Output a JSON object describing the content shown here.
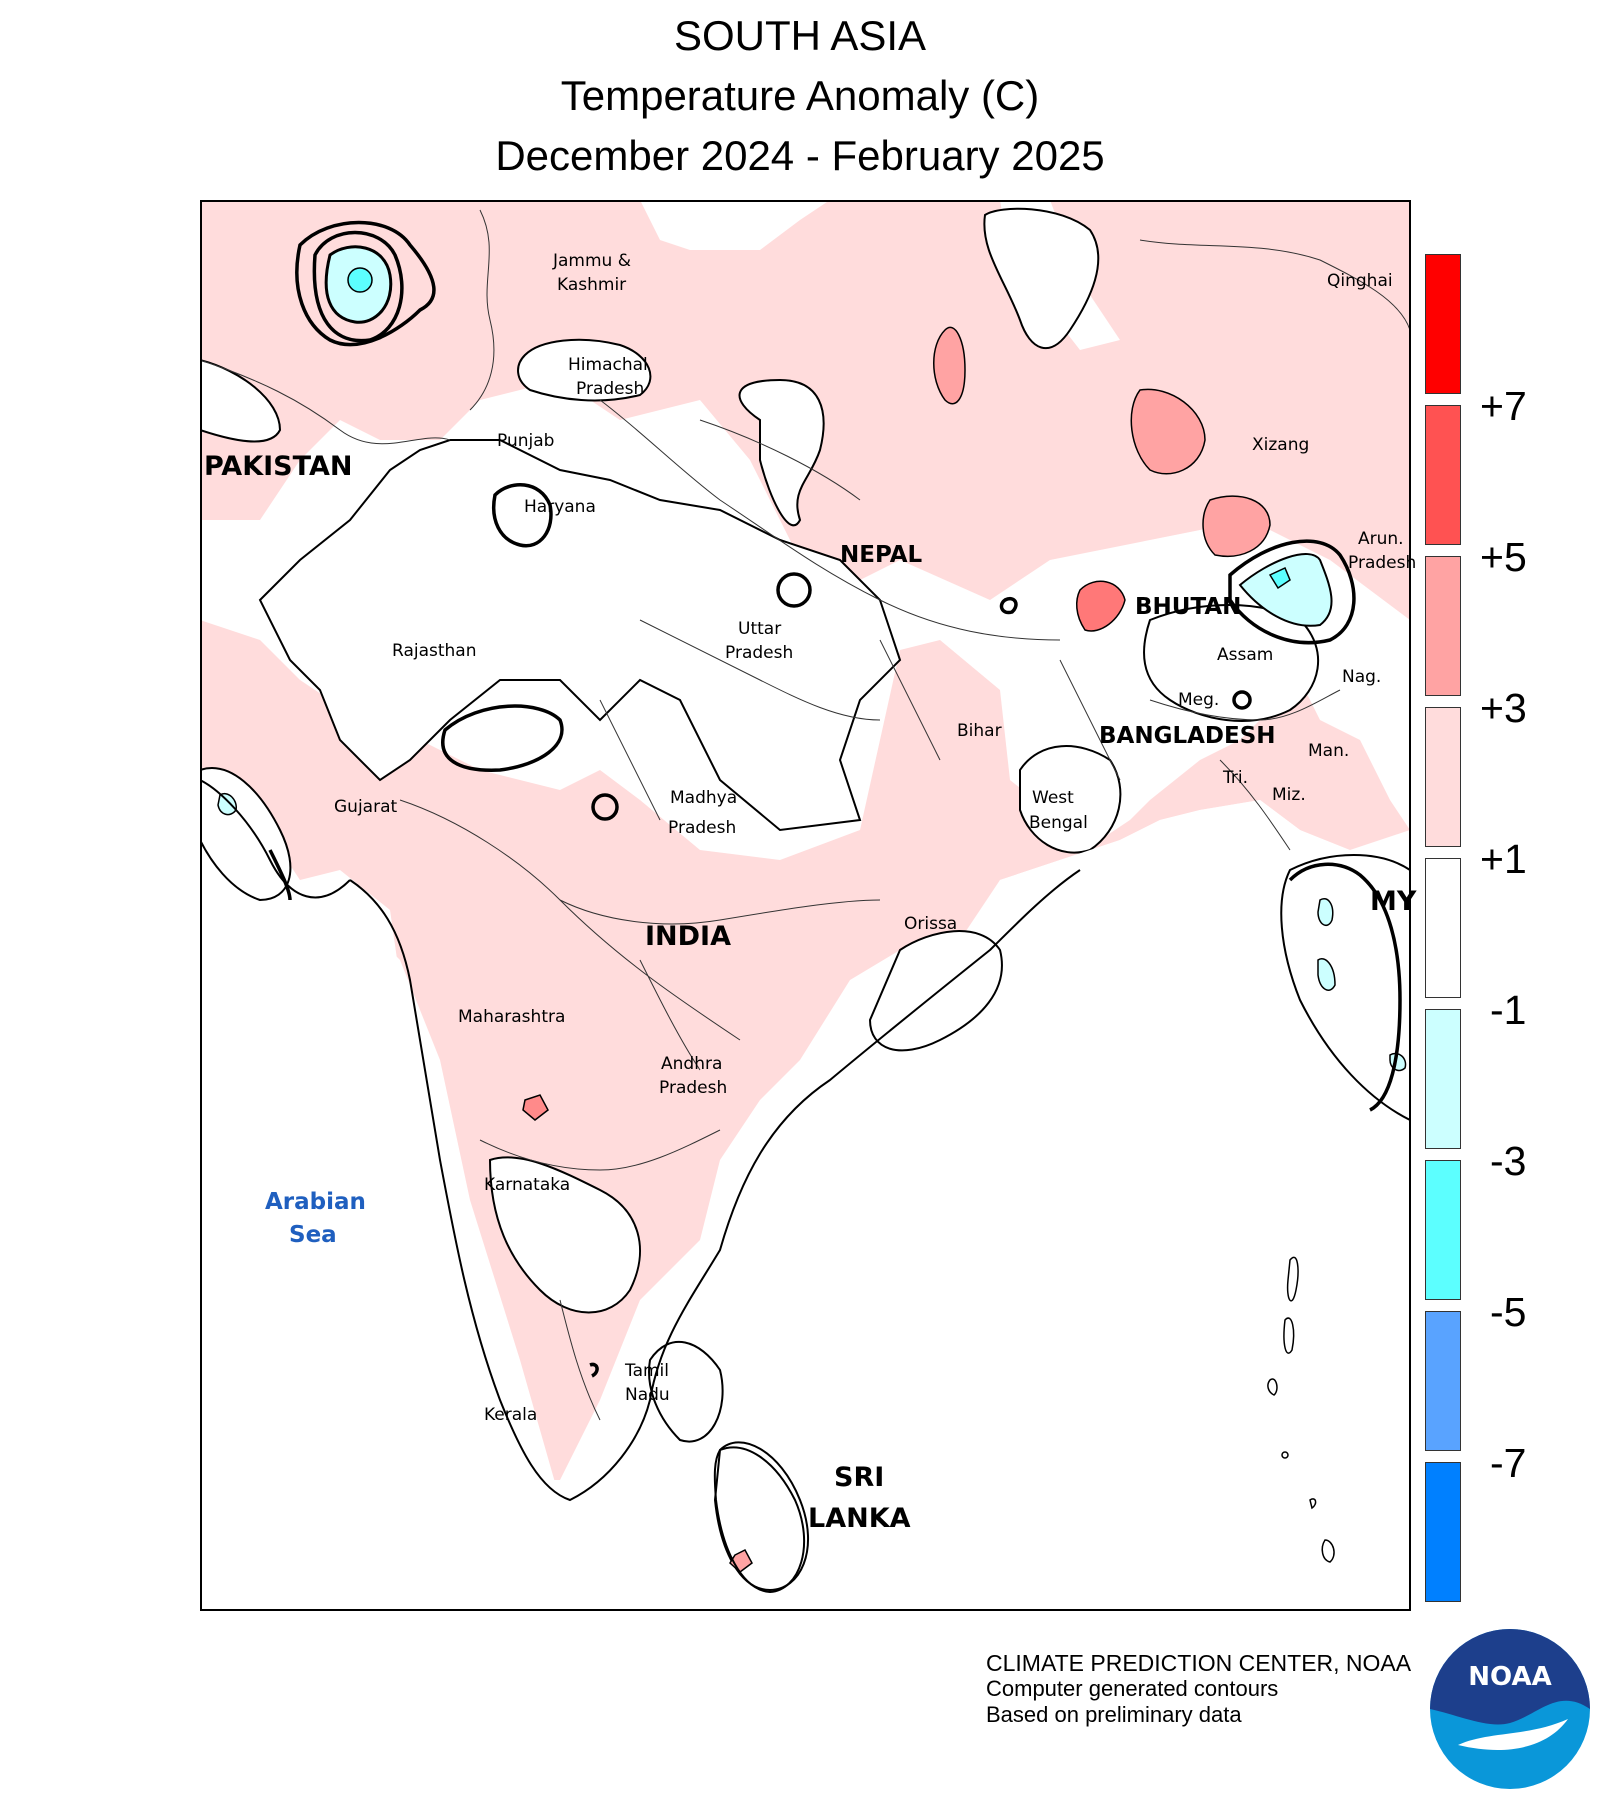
{
  "title": {
    "line1": "SOUTH ASIA",
    "line2": "Temperature Anomaly (C)",
    "line3": "December 2024 - February 2025"
  },
  "legend": {
    "colors": [
      "#ff0000",
      "#ff5252",
      "#ffa3a3",
      "#ffdcdc",
      "#ffffff",
      "#ccffff",
      "#5cffff",
      "#59a3ff",
      "#0080ff"
    ],
    "ticks": [
      "+7",
      "+5",
      "+3",
      "+1",
      "-1",
      "-3",
      "-5",
      "-7"
    ]
  },
  "map_labels": {
    "jammu": [
      "Jammu &",
      "Kashmir"
    ],
    "himachal": [
      "Himachal",
      "Pradesh"
    ],
    "punjab": "Punjab",
    "haryana": "Haryana",
    "pakistan": "PAKISTAN",
    "nepal": "NEPAL",
    "qinghai": "Qinghai",
    "xizang": "Xizang",
    "arun": [
      "Arun.",
      "Pradesh"
    ],
    "bhutan": "BHUTAN",
    "assam": "Assam",
    "nag": "Nag.",
    "meg": "Meg.",
    "bangladesh": "BANGLADESH",
    "man": "Man.",
    "tri": "Tri.",
    "miz": "Miz.",
    "myanmar": "MY",
    "rajasthan": "Rajasthan",
    "uttar": [
      "Uttar",
      "Pradesh"
    ],
    "bihar": "Bihar",
    "west_bengal": [
      "West",
      "Bengal"
    ],
    "gujarat": "Gujarat",
    "madhya": [
      "Madhya",
      "Pradesh"
    ],
    "india": "INDIA",
    "orissa": "Orissa",
    "maharashtra": "Maharashtra",
    "andhra": [
      "Andhra",
      "Pradesh"
    ],
    "karnataka": "Karnataka",
    "tamil": [
      "Tamil",
      "Nadu"
    ],
    "kerala": "Kerala",
    "sri_lanka": [
      "SRI",
      "LANKA"
    ],
    "arabian_sea": [
      "Arabian",
      "Sea"
    ]
  },
  "credits": {
    "line1": "CLIMATE PREDICTION CENTER, NOAA",
    "line2": "Computer generated contours",
    "line3": "Based on preliminary data"
  },
  "logo": {
    "text": "NOAA",
    "colors": {
      "dark": "#1d3f8c",
      "light": "#0a97d9"
    }
  }
}
